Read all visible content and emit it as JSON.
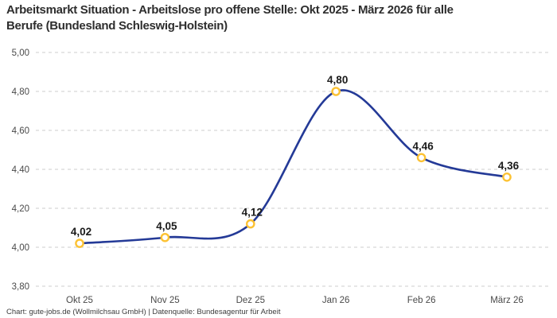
{
  "header": {
    "title_line1": "Arbeitsmarkt Situation - Arbeitslose pro offene Stelle: Okt 2025 - März 2026 für alle",
    "title_line2": "Berufe (Bundesland Schleswig-Holstein)"
  },
  "footer": {
    "attribution": "Chart: gute-jobs.de (Wollmilchsau GmbH) | Datenquelle: Bundesagentur für Arbeit"
  },
  "chart_data": {
    "type": "line",
    "title": "Arbeitsmarkt Situation - Arbeitslose pro offene Stelle: Okt 2025 - März 2026 für alle Berufe (Bundesland Schleswig-Holstein)",
    "categories": [
      "Okt 25",
      "Nov 25",
      "Dez 25",
      "Jan 26",
      "Feb 26",
      "März 26"
    ],
    "values": [
      4.02,
      4.05,
      4.12,
      4.8,
      4.46,
      4.36
    ],
    "point_labels": [
      "4,02",
      "4,05",
      "4,12",
      "4,80",
      "4,46",
      "4,36"
    ],
    "y_ticks": [
      3.8,
      4.0,
      4.2,
      4.4,
      4.6,
      4.8,
      5.0
    ],
    "y_tick_labels": [
      "3,80",
      "4,00",
      "4,20",
      "4,40",
      "4,60",
      "4,80",
      "5,00"
    ],
    "ylim": [
      3.8,
      5.0
    ],
    "xlabel": "",
    "ylabel": "",
    "legend": "none",
    "grid": "horizontal-dashed",
    "line_color": "#243a97",
    "marker_ring_color": "#fcc233",
    "marker_fill_color": "#ffffff",
    "gridline_color": "#cdcdcd",
    "tick_label_color": "#4a4a4a",
    "data_label_color": "#1a1a1a"
  }
}
